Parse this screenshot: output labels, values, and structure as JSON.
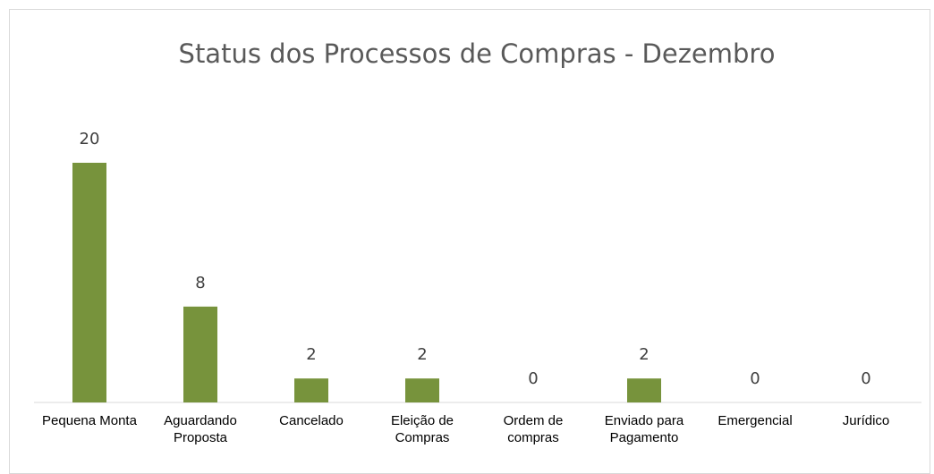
{
  "chart_data": {
    "type": "bar",
    "title": "Status dos Processos de Compras - Dezembro",
    "categories": [
      "Pequena Monta",
      "Aguardando Proposta",
      "Cancelado",
      "Eleição de Compras",
      "Ordem de compras",
      "Enviado para Pagamento",
      "Emergencial",
      "Jurídico"
    ],
    "values": [
      20,
      8,
      2,
      2,
      0,
      2,
      0,
      0
    ],
    "color": "#77933c"
  }
}
